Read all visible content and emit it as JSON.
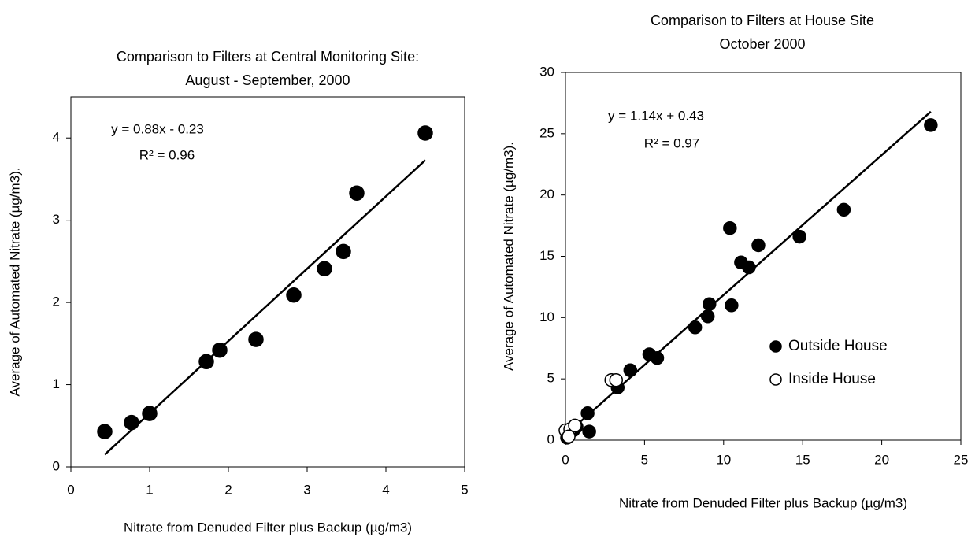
{
  "chart_data": [
    {
      "type": "scatter",
      "title": [
        "Comparison to Filters at Central Monitoring Site:",
        "August - September, 2000"
      ],
      "xlabel": "Nitrate from Denuded Filter plus Backup (µg/m3)",
      "ylabel": "Average of Automated Nitrate (µg/m3).",
      "annotations": [
        "y = 0.88x - 0.23",
        "R² = 0.96"
      ],
      "x": [
        0.43,
        0.77,
        1.0,
        1.72,
        1.89,
        2.35,
        2.83,
        3.22,
        3.46,
        3.63,
        4.5
      ],
      "values": [
        0.43,
        0.54,
        0.65,
        1.28,
        1.42,
        1.55,
        2.09,
        2.41,
        2.62,
        3.33,
        4.06
      ],
      "color": "#000000",
      "trendline": {
        "x": [
          0.43,
          4.5
        ],
        "y": [
          0.15,
          3.73
        ]
      },
      "xlim": [
        0,
        5
      ],
      "xticks": [
        0,
        1,
        2,
        3,
        4,
        5
      ],
      "ylim": [
        0,
        4.5
      ],
      "yticks": [
        0,
        1,
        2,
        3,
        4
      ]
    },
    {
      "type": "scatter",
      "title": [
        "Comparison to Filters at House Site",
        "October 2000"
      ],
      "xlabel": "Nitrate from Denuded Filter plus Backup (µg/m3)",
      "ylabel": "Average of Automated  Nitrate (µg/m3).",
      "annotations": [
        "y = 1.14x + 0.43",
        "R² = 0.97"
      ],
      "series": [
        {
          "name": "Outside House",
          "color": "#000000",
          "fill": "#000000",
          "x": [
            23.1,
            17.6,
            14.8,
            12.2,
            10.4,
            11.1,
            11.6,
            10.5,
            9.1,
            9.0,
            8.2,
            5.3,
            5.8,
            4.1,
            3.3,
            1.4,
            1.5,
            0.1,
            0.2,
            0.5,
            0.7
          ],
          "values": [
            25.7,
            18.8,
            16.6,
            15.9,
            17.3,
            14.5,
            14.1,
            11.0,
            11.1,
            10.1,
            9.2,
            7.0,
            6.7,
            5.7,
            4.3,
            2.2,
            0.7,
            0.2,
            0.4,
            0.8,
            1.1
          ]
        },
        {
          "name": "Inside House",
          "color": "#000000",
          "fill": "#ffffff",
          "x": [
            2.9,
            3.2,
            0.0,
            0.3,
            0.6,
            0.2
          ],
          "values": [
            4.9,
            4.9,
            0.8,
            0.9,
            1.2,
            0.3
          ]
        }
      ],
      "trendline": {
        "x": [
          0,
          23.1
        ],
        "y": [
          0.43,
          26.8
        ]
      },
      "legend": "lower right",
      "xlim": [
        0,
        25
      ],
      "xticks": [
        0,
        5,
        10,
        15,
        20,
        25
      ],
      "ylim": [
        0,
        30
      ],
      "yticks": [
        0,
        5,
        10,
        15,
        20,
        25,
        30
      ]
    }
  ]
}
